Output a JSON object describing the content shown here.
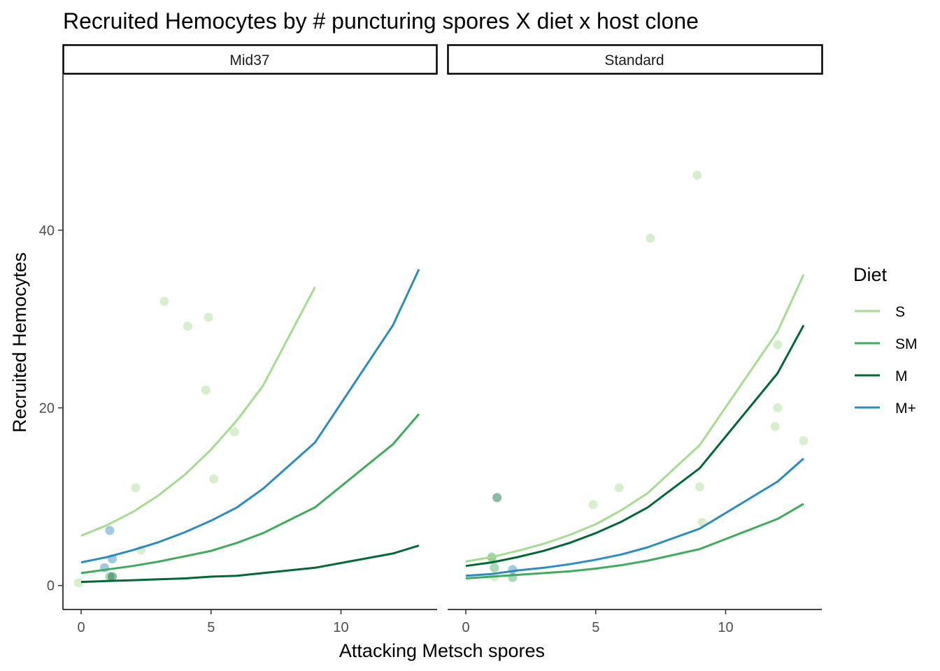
{
  "chart_data": {
    "type": "line",
    "title": "Recruited Hemocytes by # puncturing spores X diet x host clone",
    "xlabel": "Attacking Metsch spores",
    "ylabel": "Recruited Hemocytes",
    "xlim": [
      -0.7,
      13.7
    ],
    "ylim": [
      -2.7,
      57.5
    ],
    "x_ticks": [
      0,
      5,
      10
    ],
    "y_ticks": [
      0,
      20,
      40
    ],
    "facets": [
      "Mid37",
      "Standard"
    ],
    "legend": {
      "title": "Diet",
      "position": "right",
      "entries": [
        {
          "label": "S",
          "color": "#a6db91"
        },
        {
          "label": "SM",
          "color": "#41ab5d"
        },
        {
          "label": "M",
          "color": "#006837"
        },
        {
          "label": "M+",
          "color": "#2b8cbe"
        }
      ]
    },
    "panels": [
      {
        "facet": "Mid37",
        "lines": [
          {
            "name": "S",
            "x": [
              0,
              1,
              2,
              3,
              4,
              5,
              6,
              7,
              9
            ],
            "y": [
              5.6,
              6.8,
              8.3,
              10.2,
              12.5,
              15.3,
              18.6,
              22.5,
              33.6
            ]
          },
          {
            "name": "SM",
            "x": [
              0,
              1,
              2,
              3,
              4,
              5,
              6,
              7,
              9,
              12,
              13
            ],
            "y": [
              1.4,
              1.8,
              2.2,
              2.7,
              3.3,
              3.9,
              4.8,
              5.9,
              8.8,
              15.9,
              19.3
            ]
          },
          {
            "name": "M",
            "x": [
              0,
              1,
              2,
              3,
              4,
              5,
              6,
              7,
              9,
              12,
              13
            ],
            "y": [
              0.4,
              0.5,
              0.6,
              0.7,
              0.8,
              1.0,
              1.1,
              1.4,
              2.0,
              3.6,
              4.5
            ]
          },
          {
            "name": "M+",
            "x": [
              0,
              1,
              2,
              3,
              4,
              5,
              6,
              7,
              9,
              12,
              13
            ],
            "y": [
              2.6,
              3.2,
              4.0,
              4.9,
              6.0,
              7.3,
              8.8,
              10.9,
              16.1,
              29.3,
              35.6
            ]
          }
        ],
        "points": [
          {
            "diet": "S",
            "x": [
              -0.1,
              2.1,
              3.2,
              4.1,
              4.9,
              4.8,
              5.1,
              5.9,
              2.3
            ],
            "y": [
              0.3,
              11.0,
              32.0,
              29.2,
              30.2,
              22.0,
              12.0,
              17.3,
              4.0
            ]
          },
          {
            "diet": "SM",
            "x": [
              1.1
            ],
            "y": [
              1.0
            ]
          },
          {
            "diet": "M",
            "x": [
              1.2
            ],
            "y": [
              1.0
            ]
          },
          {
            "diet": "M+",
            "x": [
              1.1,
              1.2,
              0.9
            ],
            "y": [
              6.2,
              3.0,
              2.0
            ]
          }
        ]
      },
      {
        "facet": "Standard",
        "lines": [
          {
            "name": "S",
            "x": [
              0,
              1,
              2,
              3,
              4,
              5,
              6,
              7,
              9,
              12,
              13
            ],
            "y": [
              2.7,
              3.2,
              3.9,
              4.7,
              5.7,
              6.9,
              8.5,
              10.4,
              15.8,
              28.6,
              35.0
            ]
          },
          {
            "name": "SM",
            "x": [
              0,
              1,
              2,
              3,
              4,
              5,
              6,
              7,
              9,
              12,
              13
            ],
            "y": [
              0.8,
              1.0,
              1.2,
              1.4,
              1.6,
              1.9,
              2.3,
              2.8,
              4.1,
              7.5,
              9.2
            ]
          },
          {
            "name": "M",
            "x": [
              0,
              1,
              2,
              3,
              4,
              5,
              6,
              7,
              9,
              12,
              13
            ],
            "y": [
              2.2,
              2.6,
              3.2,
              3.9,
              4.8,
              5.9,
              7.2,
              8.8,
              13.2,
              23.9,
              29.3
            ]
          },
          {
            "name": "M+",
            "x": [
              0,
              1,
              2,
              3,
              4,
              5,
              6,
              7,
              9,
              12,
              13
            ],
            "y": [
              1.1,
              1.3,
              1.7,
              2.0,
              2.4,
              2.9,
              3.5,
              4.3,
              6.4,
              11.7,
              14.3
            ]
          }
        ],
        "points": [
          {
            "diet": "S",
            "x": [
              8.9,
              7.1,
              5.9,
              4.9,
              9.0,
              9.1,
              12.0,
              12.0,
              11.9,
              13.0,
              1.0,
              1.1
            ],
            "y": [
              46.2,
              39.1,
              11.0,
              9.1,
              11.1,
              7.1,
              27.1,
              20.0,
              17.9,
              16.3,
              3.0,
              1.0
            ]
          },
          {
            "diet": "SM",
            "x": [
              1.0,
              1.1,
              1.8
            ],
            "y": [
              3.2,
              2.0,
              0.9
            ]
          },
          {
            "diet": "M",
            "x": [
              1.2
            ],
            "y": [
              9.9
            ]
          },
          {
            "diet": "M+",
            "x": [
              1.8
            ],
            "y": [
              1.8
            ]
          }
        ]
      }
    ]
  }
}
